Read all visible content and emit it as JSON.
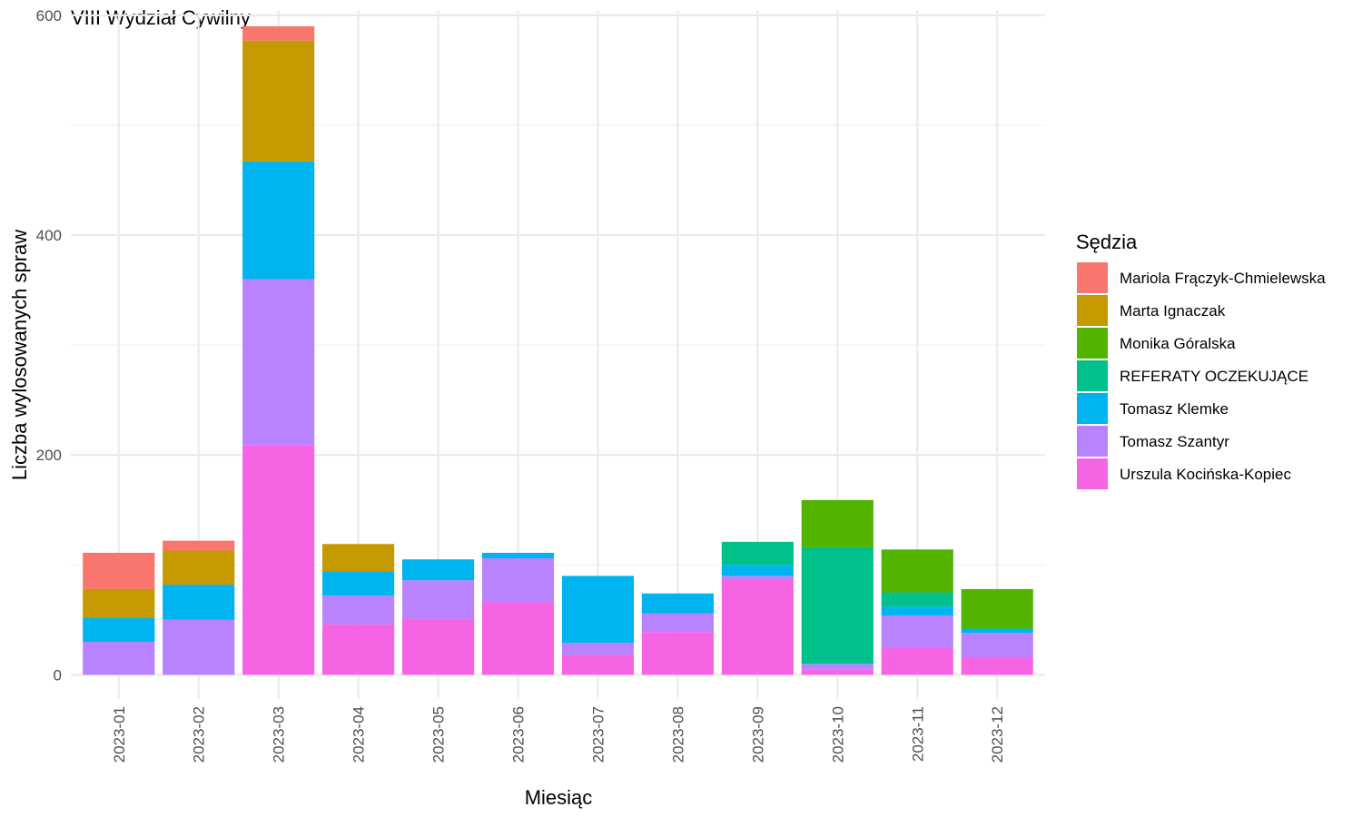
{
  "chart_data": {
    "type": "bar",
    "stacked": true,
    "title": "VIII Wydział Cywilny",
    "xlabel": "Miesiąc",
    "ylabel": "Liczba wylosowanych spraw",
    "ylim": [
      -22,
      604
    ],
    "yticks": [
      0,
      200,
      400,
      600
    ],
    "grid": true,
    "legend_position": "right",
    "legend_title": "Sędzia",
    "categories": [
      "2023-01",
      "2023-02",
      "2023-03",
      "2023-04",
      "2023-05",
      "2023-06",
      "2023-07",
      "2023-08",
      "2023-09",
      "2023-10",
      "2023-11",
      "2023-12"
    ],
    "series": [
      {
        "name": "Urszula Kocińska-Kopiec",
        "color": "#F564E3",
        "values": [
          0,
          0,
          209,
          46,
          51,
          66,
          18,
          39,
          87,
          5,
          25,
          16
        ]
      },
      {
        "name": "Tomasz Szantyr",
        "color": "#B983FF",
        "values": [
          30,
          50,
          151,
          26,
          35,
          40,
          11,
          17,
          3,
          5,
          29,
          22
        ]
      },
      {
        "name": "Tomasz Klemke",
        "color": "#00B4EF",
        "values": [
          22,
          32,
          107,
          22,
          19,
          5,
          61,
          18,
          10,
          0,
          8,
          4
        ]
      },
      {
        "name": "REFERATY OCZEKUJĄCE",
        "color": "#00C08B",
        "values": [
          0,
          0,
          0,
          0,
          0,
          0,
          0,
          0,
          21,
          106,
          13,
          0
        ]
      },
      {
        "name": "Monika Góralska",
        "color": "#53B400",
        "values": [
          0,
          0,
          0,
          0,
          0,
          0,
          0,
          0,
          0,
          43,
          39,
          36
        ]
      },
      {
        "name": "Marta Ignaczak",
        "color": "#C49A00",
        "values": [
          26,
          31,
          110,
          25,
          0,
          0,
          0,
          0,
          0,
          0,
          0,
          0
        ]
      },
      {
        "name": "Mariola Frączyk-Chmielewska",
        "color": "#F8766D",
        "values": [
          33,
          9,
          13,
          0,
          0,
          0,
          0,
          0,
          0,
          0,
          0,
          0
        ]
      }
    ],
    "legend_order": [
      "Mariola Frączyk-Chmielewska",
      "Marta Ignaczak",
      "Monika Góralska",
      "REFERATY OCZEKUJĄCE",
      "Tomasz Klemke",
      "Tomasz Szantyr",
      "Urszula Kocińska-Kopiec"
    ]
  }
}
